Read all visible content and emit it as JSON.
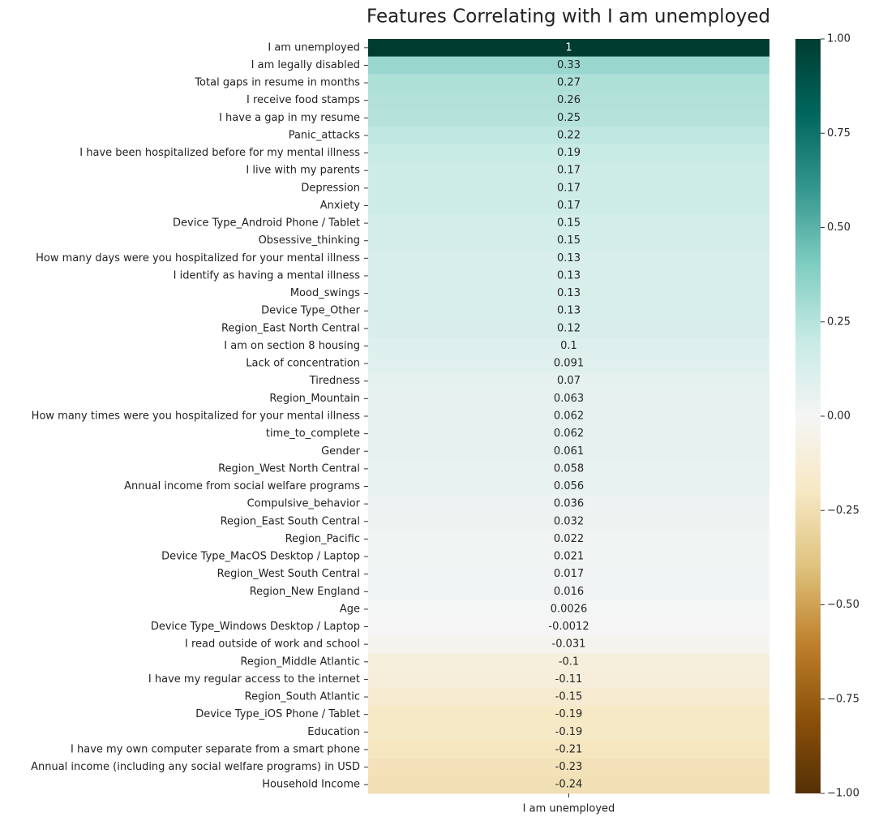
{
  "chart_data": {
    "type": "heatmap",
    "title": "Features Correlating with I am unemployed",
    "x_categories": [
      "I am unemployed"
    ],
    "categories": [
      "I am unemployed",
      "I am legally disabled",
      "Total gaps in resume in months",
      "I receive food stamps",
      "I have a gap in my resume",
      "Panic_attacks",
      "I have been hospitalized before for my mental illness",
      "I live with my parents",
      "Depression",
      "Anxiety",
      "Device Type_Android Phone / Tablet",
      "Obsessive_thinking",
      "How many days were you hospitalized for your mental illness",
      "I identify as having a mental illness",
      "Mood_swings",
      "Device Type_Other",
      "Region_East North Central",
      "I am on section 8 housing",
      "Lack of concentration",
      "Tiredness",
      "Region_Mountain",
      "How many times were you hospitalized for your mental illness",
      "time_to_complete",
      "Gender",
      "Region_West North Central",
      "Annual income from social welfare programs",
      "Compulsive_behavior",
      "Region_East South Central",
      "Region_Pacific",
      "Device Type_MacOS Desktop / Laptop",
      "Region_West South Central",
      "Region_New England",
      "Age",
      "Device Type_Windows Desktop / Laptop",
      "I read outside of work and school",
      "Region_Middle Atlantic",
      "I have my regular access to the internet",
      "Region_South Atlantic",
      "Device Type_iOS Phone / Tablet",
      "Education",
      "I have my own computer separate from a smart phone",
      "Annual income (including any social welfare programs) in USD",
      "Household Income"
    ],
    "values": [
      1,
      0.33,
      0.27,
      0.26,
      0.25,
      0.22,
      0.19,
      0.17,
      0.17,
      0.17,
      0.15,
      0.15,
      0.13,
      0.13,
      0.13,
      0.13,
      0.12,
      0.1,
      0.091,
      0.07,
      0.063,
      0.062,
      0.062,
      0.061,
      0.058,
      0.056,
      0.036,
      0.032,
      0.022,
      0.021,
      0.017,
      0.016,
      0.0026,
      -0.0012,
      -0.031,
      -0.1,
      -0.11,
      -0.15,
      -0.19,
      -0.19,
      -0.21,
      -0.23,
      -0.24
    ],
    "clim": [
      -1,
      1
    ],
    "colormap": [
      "#543005",
      "#8c510a",
      "#bf812d",
      "#dfc27d",
      "#f6e8c3",
      "#f5f5f5",
      "#c7eae5",
      "#80cdc1",
      "#35978f",
      "#01665e",
      "#003c30"
    ],
    "cticks": [
      {
        "value": -1,
        "label": "−1.00"
      },
      {
        "value": -0.75,
        "label": "−0.75"
      },
      {
        "value": -0.5,
        "label": "−0.50"
      },
      {
        "value": -0.25,
        "label": "−0.25"
      },
      {
        "value": 0,
        "label": "0.00"
      },
      {
        "value": 0.25,
        "label": "0.25"
      },
      {
        "value": 0.5,
        "label": "0.50"
      },
      {
        "value": 0.75,
        "label": "0.75"
      },
      {
        "value": 1,
        "label": "1.00"
      }
    ]
  }
}
